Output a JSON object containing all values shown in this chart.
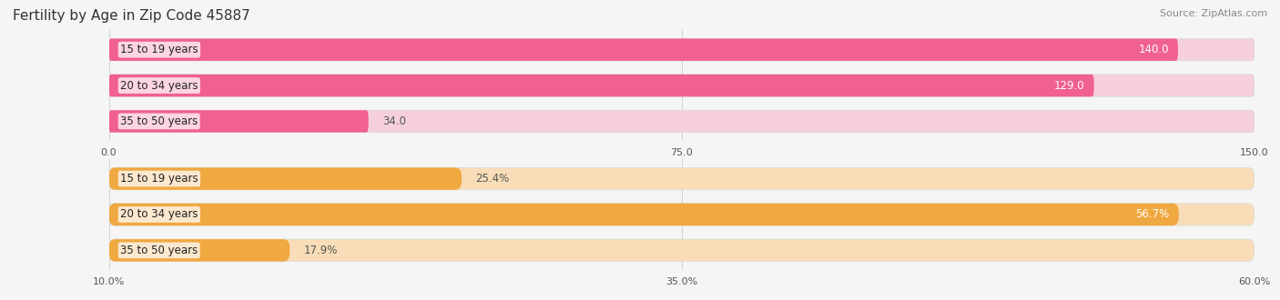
{
  "title": "Fertility by Age in Zip Code 45887",
  "source": "Source: ZipAtlas.com",
  "top_chart": {
    "categories": [
      "15 to 19 years",
      "20 to 34 years",
      "35 to 50 years"
    ],
    "values": [
      140.0,
      129.0,
      34.0
    ],
    "xlim": [
      0.0,
      150.0
    ],
    "xticks": [
      0.0,
      75.0,
      150.0
    ],
    "xtick_labels": [
      "0.0",
      "75.0",
      "150.0"
    ],
    "bar_color": "#F06090",
    "bar_bg_color": "#F5D0DC",
    "value_threshold_pct": 0.65
  },
  "bottom_chart": {
    "categories": [
      "15 to 19 years",
      "20 to 34 years",
      "35 to 50 years"
    ],
    "values": [
      25.4,
      56.7,
      17.9
    ],
    "xlim": [
      10.0,
      60.0
    ],
    "xticks": [
      10.0,
      35.0,
      60.0
    ],
    "xtick_labels": [
      "10.0%",
      "35.0%",
      "60.0%"
    ],
    "bar_color": "#F0A840",
    "bar_bg_color": "#F8DDB8",
    "value_threshold_pct": 0.65
  },
  "fig_bg_color": "#f5f5f5",
  "bar_height": 0.62,
  "bar_gap": 1.0,
  "label_fontsize": 8.5,
  "tick_fontsize": 8,
  "category_fontsize": 8.5,
  "title_fontsize": 11,
  "source_fontsize": 8
}
